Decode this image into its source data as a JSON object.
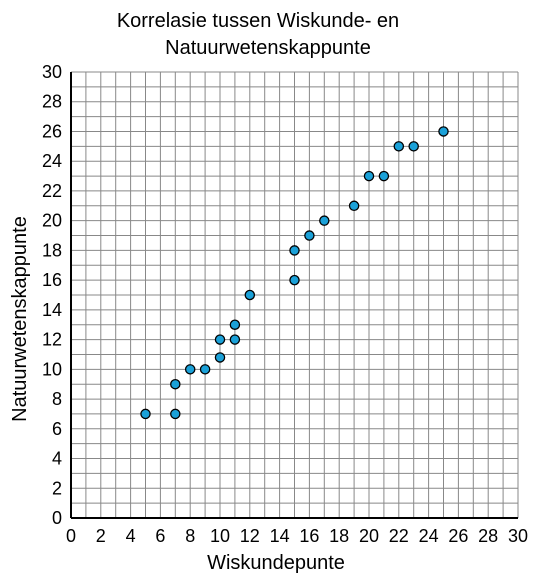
{
  "chart_data": {
    "type": "scatter",
    "title_lines": [
      "Korrelasie tussen Wiskunde- en",
      "Natuurwetenskappunte"
    ],
    "xlabel": "Wiskundepunte",
    "ylabel": "Natuurwetenskappunte",
    "xlim": [
      0,
      30
    ],
    "ylim": [
      0,
      30
    ],
    "x_ticks": [
      0,
      2,
      4,
      6,
      8,
      10,
      12,
      14,
      16,
      18,
      20,
      22,
      24,
      26,
      28,
      30
    ],
    "y_ticks": [
      0,
      2,
      4,
      6,
      8,
      10,
      12,
      14,
      16,
      18,
      20,
      22,
      24,
      26,
      28,
      30
    ],
    "grid": true,
    "point_color": "#1ba1d8",
    "points": [
      {
        "x": 5,
        "y": 7
      },
      {
        "x": 7,
        "y": 7
      },
      {
        "x": 7,
        "y": 9
      },
      {
        "x": 8,
        "y": 10
      },
      {
        "x": 9,
        "y": 10
      },
      {
        "x": 10,
        "y": 10.8
      },
      {
        "x": 10,
        "y": 12
      },
      {
        "x": 11,
        "y": 12
      },
      {
        "x": 11,
        "y": 13
      },
      {
        "x": 12,
        "y": 15
      },
      {
        "x": 15,
        "y": 16
      },
      {
        "x": 15,
        "y": 18
      },
      {
        "x": 16,
        "y": 19
      },
      {
        "x": 17,
        "y": 20
      },
      {
        "x": 19,
        "y": 21
      },
      {
        "x": 20,
        "y": 23
      },
      {
        "x": 21,
        "y": 23
      },
      {
        "x": 22,
        "y": 25
      },
      {
        "x": 23,
        "y": 25
      },
      {
        "x": 25,
        "y": 26
      }
    ]
  }
}
